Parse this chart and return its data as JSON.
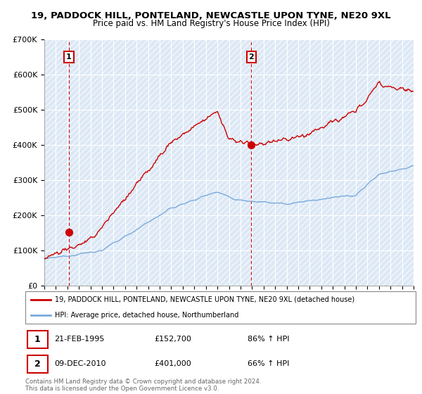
{
  "title": "19, PADDOCK HILL, PONTELAND, NEWCASTLE UPON TYNE, NE20 9XL",
  "subtitle": "Price paid vs. HM Land Registry's House Price Index (HPI)",
  "ylim": [
    0,
    700000
  ],
  "yticks": [
    0,
    100000,
    200000,
    300000,
    400000,
    500000,
    600000,
    700000
  ],
  "ytick_labels": [
    "£0",
    "£100K",
    "£200K",
    "£300K",
    "£400K",
    "£500K",
    "£600K",
    "£700K"
  ],
  "hpi_color": "#7aaadd",
  "price_color": "#cc0000",
  "annotation1_date": "21-FEB-1995",
  "annotation1_price": "£152,700",
  "annotation1_hpi": "86% ↑ HPI",
  "annotation2_date": "09-DEC-2010",
  "annotation2_price": "£401,000",
  "annotation2_hpi": "66% ↑ HPI",
  "legend_label1": "19, PADDOCK HILL, PONTELAND, NEWCASTLE UPON TYNE, NE20 9XL (detached house)",
  "legend_label2": "HPI: Average price, detached house, Northumberland",
  "footnote": "Contains HM Land Registry data © Crown copyright and database right 2024.\nThis data is licensed under the Open Government Licence v3.0.",
  "background_color": "#dce8f5",
  "grid_color": "#cccccc",
  "sale1_x": 1995.13,
  "sale1_y": 152700,
  "sale2_x": 2010.93,
  "sale2_y": 401000,
  "xmin": 1993,
  "xmax": 2025
}
